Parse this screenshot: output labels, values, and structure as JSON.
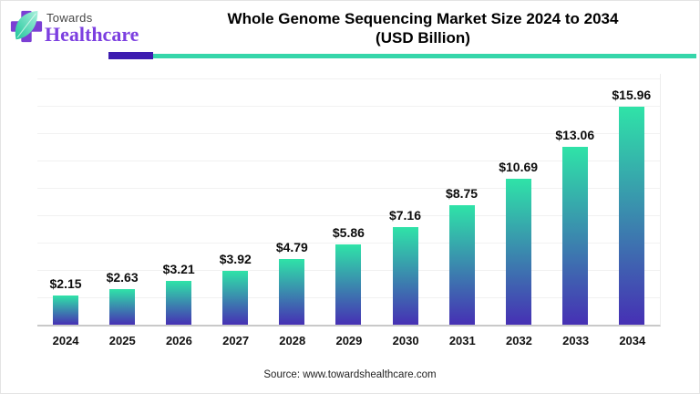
{
  "logo": {
    "brand_top": "Towards",
    "brand_bottom": "Healthcare",
    "cross_color": "#7b3fd4",
    "leaf_color_dark": "#1fc79b",
    "leaf_color_light": "#a9f0dc",
    "brand_top_color": "#454545",
    "brand_bottom_color": "#7c3fe0"
  },
  "header": {
    "title_line1": "Whole Genome Sequencing Market Size 2024 to 2034",
    "title_line2": "(USD Billion)",
    "divider_purple_color": "#3d1db0",
    "divider_teal_color": "#36d6aa"
  },
  "chart_data": {
    "type": "bar",
    "title": "Whole Genome Sequencing Market Size 2024 to 2034 (USD Billion)",
    "categories": [
      "2024",
      "2025",
      "2026",
      "2027",
      "2028",
      "2029",
      "2030",
      "2031",
      "2032",
      "2033",
      "2034"
    ],
    "values": [
      2.15,
      2.63,
      3.21,
      3.92,
      4.79,
      5.86,
      7.16,
      8.75,
      10.69,
      13.06,
      15.96
    ],
    "value_labels": [
      "$2.15",
      "$2.63",
      "$3.21",
      "$3.92",
      "$4.79",
      "$5.86",
      "$7.16",
      "$8.75",
      "$10.69",
      "$13.06",
      "$15.96"
    ],
    "xlabel": "",
    "ylabel": "USD Billion",
    "ylim": [
      0,
      18.5
    ],
    "gridline_step": 2,
    "grid": true,
    "legend": "none",
    "bar_gradient_top": "#2fe3a8",
    "bar_gradient_bottom": "#4630b4"
  },
  "footer": {
    "source": "Source: www.towardshealthcare.com"
  }
}
